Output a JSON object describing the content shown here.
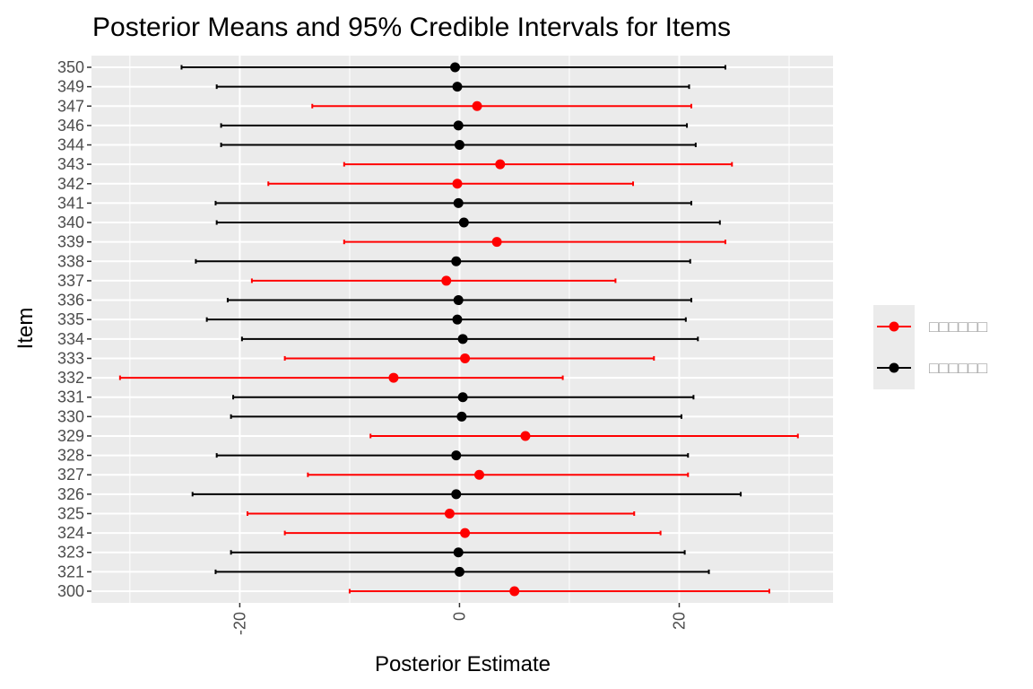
{
  "chart_data": {
    "type": "forest",
    "title": "Posterior Means and 95% Credible Intervals for Items",
    "xlabel": "Posterior Estimate",
    "ylabel": "Item",
    "xlim": [
      -33.5,
      34
    ],
    "xticks": [
      -20,
      0,
      20
    ],
    "grid": true,
    "legend_position": "right",
    "colors": {
      "highlight": "#ff0000",
      "default": "#000000"
    },
    "legend": [
      {
        "label": "□□□□□□",
        "color": "#ff0000"
      },
      {
        "label": "□□□□□□",
        "color": "#000000"
      }
    ],
    "items": [
      {
        "label": "350",
        "mean": -0.4,
        "lower": -25.3,
        "upper": 24.2,
        "group": "default"
      },
      {
        "label": "349",
        "mean": -0.2,
        "lower": -22.1,
        "upper": 20.9,
        "group": "default"
      },
      {
        "label": "347",
        "mean": 1.6,
        "lower": -13.4,
        "upper": 21.1,
        "group": "highlight"
      },
      {
        "label": "346",
        "mean": -0.1,
        "lower": -21.7,
        "upper": 20.7,
        "group": "default"
      },
      {
        "label": "344",
        "mean": 0.0,
        "lower": -21.7,
        "upper": 21.5,
        "group": "default"
      },
      {
        "label": "343",
        "mean": 3.7,
        "lower": -10.5,
        "upper": 24.8,
        "group": "highlight"
      },
      {
        "label": "342",
        "mean": -0.2,
        "lower": -17.4,
        "upper": 15.8,
        "group": "highlight"
      },
      {
        "label": "341",
        "mean": -0.1,
        "lower": -22.2,
        "upper": 21.1,
        "group": "default"
      },
      {
        "label": "340",
        "mean": 0.4,
        "lower": -22.1,
        "upper": 23.7,
        "group": "default"
      },
      {
        "label": "339",
        "mean": 3.4,
        "lower": -10.5,
        "upper": 24.2,
        "group": "highlight"
      },
      {
        "label": "338",
        "mean": -0.3,
        "lower": -24.0,
        "upper": 21.0,
        "group": "default"
      },
      {
        "label": "337",
        "mean": -1.2,
        "lower": -18.9,
        "upper": 14.2,
        "group": "highlight"
      },
      {
        "label": "336",
        "mean": -0.1,
        "lower": -21.1,
        "upper": 21.1,
        "group": "default"
      },
      {
        "label": "335",
        "mean": -0.2,
        "lower": -23.0,
        "upper": 20.6,
        "group": "default"
      },
      {
        "label": "334",
        "mean": 0.3,
        "lower": -19.8,
        "upper": 21.7,
        "group": "default"
      },
      {
        "label": "333",
        "mean": 0.5,
        "lower": -15.9,
        "upper": 17.7,
        "group": "highlight"
      },
      {
        "label": "332",
        "mean": -6.0,
        "lower": -30.9,
        "upper": 9.4,
        "group": "highlight"
      },
      {
        "label": "331",
        "mean": 0.3,
        "lower": -20.6,
        "upper": 21.3,
        "group": "default"
      },
      {
        "label": "330",
        "mean": 0.2,
        "lower": -20.8,
        "upper": 20.2,
        "group": "default"
      },
      {
        "label": "329",
        "mean": 6.0,
        "lower": -8.1,
        "upper": 30.8,
        "group": "highlight"
      },
      {
        "label": "328",
        "mean": -0.3,
        "lower": -22.1,
        "upper": 20.8,
        "group": "default"
      },
      {
        "label": "327",
        "mean": 1.8,
        "lower": -13.8,
        "upper": 20.8,
        "group": "highlight"
      },
      {
        "label": "326",
        "mean": -0.3,
        "lower": -24.3,
        "upper": 25.6,
        "group": "default"
      },
      {
        "label": "325",
        "mean": -0.9,
        "lower": -19.3,
        "upper": 15.9,
        "group": "highlight"
      },
      {
        "label": "324",
        "mean": 0.5,
        "lower": -15.9,
        "upper": 18.3,
        "group": "highlight"
      },
      {
        "label": "323",
        "mean": -0.1,
        "lower": -20.8,
        "upper": 20.5,
        "group": "default"
      },
      {
        "label": "321",
        "mean": 0.0,
        "lower": -22.2,
        "upper": 22.7,
        "group": "default"
      },
      {
        "label": "300",
        "mean": 5.0,
        "lower": -10.0,
        "upper": 28.2,
        "group": "highlight"
      }
    ]
  }
}
